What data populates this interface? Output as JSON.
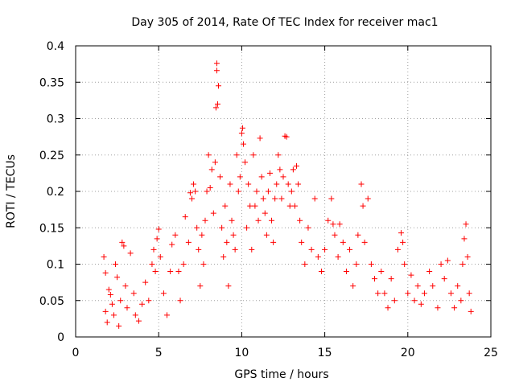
{
  "chart_data": {
    "type": "scatter",
    "title": "Day 305 of 2014, Rate Of TEC Index for receiver mac1",
    "xlabel": "GPS time / hours",
    "ylabel": "ROTI / TECUs",
    "xlim": [
      0,
      25
    ],
    "ylim": [
      0,
      0.4
    ],
    "xticks": [
      {
        "value": 0,
        "label": "0"
      },
      {
        "value": 5,
        "label": "5"
      },
      {
        "value": 10,
        "label": "10"
      },
      {
        "value": 15,
        "label": "15"
      },
      {
        "value": 20,
        "label": "20"
      },
      {
        "value": 25,
        "label": "25"
      }
    ],
    "yticks": [
      {
        "value": 0,
        "label": "0"
      },
      {
        "value": 0.05,
        "label": "0.05"
      },
      {
        "value": 0.1,
        "label": "0.1"
      },
      {
        "value": 0.15,
        "label": "0.15"
      },
      {
        "value": 0.2,
        "label": "0.2"
      },
      {
        "value": 0.25,
        "label": "0.25"
      },
      {
        "value": 0.3,
        "label": "0.3"
      },
      {
        "value": 0.35,
        "label": "0.35"
      },
      {
        "value": 0.4,
        "label": "0.4"
      }
    ],
    "grid": true,
    "marker": "plus",
    "color": "#ff0000",
    "series": [
      {
        "name": "ROTI",
        "points": [
          [
            1.7,
            0.11
          ],
          [
            1.8,
            0.088
          ],
          [
            1.8,
            0.035
          ],
          [
            1.9,
            0.02
          ],
          [
            2.0,
            0.065
          ],
          [
            2.1,
            0.058
          ],
          [
            2.2,
            0.045
          ],
          [
            2.3,
            0.03
          ],
          [
            2.4,
            0.1
          ],
          [
            2.5,
            0.082
          ],
          [
            2.6,
            0.015
          ],
          [
            2.7,
            0.05
          ],
          [
            2.8,
            0.13
          ],
          [
            2.9,
            0.125
          ],
          [
            3.0,
            0.07
          ],
          [
            3.1,
            0.04
          ],
          [
            3.3,
            0.115
          ],
          [
            3.5,
            0.06
          ],
          [
            3.6,
            0.03
          ],
          [
            3.8,
            0.022
          ],
          [
            4.0,
            0.045
          ],
          [
            4.2,
            0.075
          ],
          [
            4.4,
            0.05
          ],
          [
            4.6,
            0.1
          ],
          [
            4.7,
            0.12
          ],
          [
            4.8,
            0.09
          ],
          [
            4.9,
            0.135
          ],
          [
            5.0,
            0.148
          ],
          [
            5.1,
            0.11
          ],
          [
            5.3,
            0.06
          ],
          [
            5.5,
            0.03
          ],
          [
            5.7,
            0.09
          ],
          [
            5.8,
            0.127
          ],
          [
            6.0,
            0.14
          ],
          [
            6.2,
            0.09
          ],
          [
            6.3,
            0.05
          ],
          [
            6.5,
            0.1
          ],
          [
            6.6,
            0.165
          ],
          [
            6.8,
            0.13
          ],
          [
            6.9,
            0.198
          ],
          [
            7.0,
            0.19
          ],
          [
            7.1,
            0.21
          ],
          [
            7.2,
            0.2
          ],
          [
            7.3,
            0.15
          ],
          [
            7.4,
            0.12
          ],
          [
            7.5,
            0.07
          ],
          [
            7.6,
            0.14
          ],
          [
            7.7,
            0.1
          ],
          [
            7.8,
            0.16
          ],
          [
            7.9,
            0.2
          ],
          [
            8.0,
            0.25
          ],
          [
            8.1,
            0.205
          ],
          [
            8.2,
            0.23
          ],
          [
            8.3,
            0.17
          ],
          [
            8.4,
            0.24
          ],
          [
            8.45,
            0.315
          ],
          [
            8.5,
            0.376
          ],
          [
            8.5,
            0.366
          ],
          [
            8.55,
            0.32
          ],
          [
            8.6,
            0.345
          ],
          [
            8.7,
            0.22
          ],
          [
            8.8,
            0.15
          ],
          [
            8.9,
            0.11
          ],
          [
            9.0,
            0.18
          ],
          [
            9.1,
            0.13
          ],
          [
            9.2,
            0.07
          ],
          [
            9.3,
            0.21
          ],
          [
            9.4,
            0.16
          ],
          [
            9.5,
            0.14
          ],
          [
            9.6,
            0.12
          ],
          [
            9.7,
            0.25
          ],
          [
            9.8,
            0.2
          ],
          [
            9.9,
            0.22
          ],
          [
            10.0,
            0.28
          ],
          [
            10.05,
            0.287
          ],
          [
            10.1,
            0.265
          ],
          [
            10.2,
            0.24
          ],
          [
            10.3,
            0.15
          ],
          [
            10.4,
            0.21
          ],
          [
            10.5,
            0.18
          ],
          [
            10.6,
            0.12
          ],
          [
            10.7,
            0.25
          ],
          [
            10.8,
            0.18
          ],
          [
            10.9,
            0.2
          ],
          [
            11.0,
            0.16
          ],
          [
            11.1,
            0.273
          ],
          [
            11.2,
            0.22
          ],
          [
            11.3,
            0.19
          ],
          [
            11.4,
            0.17
          ],
          [
            11.5,
            0.14
          ],
          [
            11.6,
            0.2
          ],
          [
            11.7,
            0.225
          ],
          [
            11.8,
            0.16
          ],
          [
            11.9,
            0.13
          ],
          [
            12.0,
            0.19
          ],
          [
            12.1,
            0.21
          ],
          [
            12.2,
            0.25
          ],
          [
            12.3,
            0.23
          ],
          [
            12.4,
            0.19
          ],
          [
            12.5,
            0.22
          ],
          [
            12.6,
            0.276
          ],
          [
            12.7,
            0.275
          ],
          [
            12.8,
            0.21
          ],
          [
            12.9,
            0.18
          ],
          [
            13.0,
            0.2
          ],
          [
            13.1,
            0.23
          ],
          [
            13.2,
            0.18
          ],
          [
            13.3,
            0.235
          ],
          [
            13.4,
            0.21
          ],
          [
            13.5,
            0.16
          ],
          [
            13.6,
            0.13
          ],
          [
            13.8,
            0.1
          ],
          [
            14.0,
            0.15
          ],
          [
            14.2,
            0.12
          ],
          [
            14.4,
            0.19
          ],
          [
            14.6,
            0.11
          ],
          [
            14.8,
            0.09
          ],
          [
            15.0,
            0.12
          ],
          [
            15.2,
            0.16
          ],
          [
            15.4,
            0.19
          ],
          [
            15.5,
            0.155
          ],
          [
            15.6,
            0.14
          ],
          [
            15.8,
            0.11
          ],
          [
            15.9,
            0.155
          ],
          [
            16.1,
            0.13
          ],
          [
            16.3,
            0.09
          ],
          [
            16.5,
            0.12
          ],
          [
            16.7,
            0.07
          ],
          [
            16.9,
            0.1
          ],
          [
            17.0,
            0.14
          ],
          [
            17.2,
            0.21
          ],
          [
            17.3,
            0.18
          ],
          [
            17.4,
            0.13
          ],
          [
            17.6,
            0.19
          ],
          [
            17.8,
            0.1
          ],
          [
            18.0,
            0.08
          ],
          [
            18.2,
            0.06
          ],
          [
            18.4,
            0.09
          ],
          [
            18.6,
            0.06
          ],
          [
            18.8,
            0.04
          ],
          [
            19.0,
            0.08
          ],
          [
            19.2,
            0.05
          ],
          [
            19.4,
            0.12
          ],
          [
            19.6,
            0.143
          ],
          [
            19.7,
            0.13
          ],
          [
            19.8,
            0.1
          ],
          [
            20.0,
            0.06
          ],
          [
            20.2,
            0.085
          ],
          [
            20.4,
            0.05
          ],
          [
            20.6,
            0.07
          ],
          [
            20.8,
            0.045
          ],
          [
            21.0,
            0.06
          ],
          [
            21.3,
            0.09
          ],
          [
            21.5,
            0.07
          ],
          [
            21.8,
            0.04
          ],
          [
            22.0,
            0.1
          ],
          [
            22.2,
            0.08
          ],
          [
            22.4,
            0.105
          ],
          [
            22.6,
            0.06
          ],
          [
            22.8,
            0.04
          ],
          [
            23.0,
            0.07
          ],
          [
            23.2,
            0.05
          ],
          [
            23.3,
            0.1
          ],
          [
            23.4,
            0.135
          ],
          [
            23.5,
            0.155
          ],
          [
            23.6,
            0.11
          ],
          [
            23.7,
            0.06
          ],
          [
            23.8,
            0.035
          ]
        ]
      }
    ]
  }
}
